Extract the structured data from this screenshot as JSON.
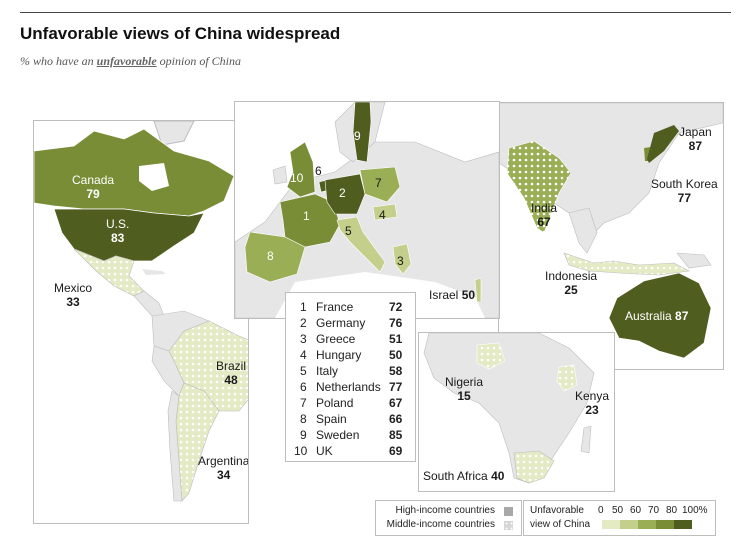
{
  "title": "Unfavorable views of China widespread",
  "subtitle_prefix": "% who have an ",
  "subtitle_emph": "unfavorable",
  "subtitle_suffix": " opinion of China",
  "americas": {
    "canada": {
      "name": "Canada",
      "value": "79"
    },
    "us": {
      "name": "U.S.",
      "value": "83"
    },
    "mexico": {
      "name": "Mexico",
      "value": "33"
    },
    "brazil": {
      "name": "Brazil",
      "value": "48"
    },
    "argentina": {
      "name": "Argentina",
      "value": "34"
    }
  },
  "europe_numbers": [
    "1",
    "2",
    "3",
    "4",
    "5",
    "6",
    "7",
    "8",
    "9",
    "10"
  ],
  "europe_list": [
    {
      "n": "1",
      "country": "France",
      "value": "72"
    },
    {
      "n": "2",
      "country": "Germany",
      "value": "76"
    },
    {
      "n": "3",
      "country": "Greece",
      "value": "51"
    },
    {
      "n": "4",
      "country": "Hungary",
      "value": "50"
    },
    {
      "n": "5",
      "country": "Italy",
      "value": "58"
    },
    {
      "n": "6",
      "country": "Netherlands",
      "value": "77"
    },
    {
      "n": "7",
      "country": "Poland",
      "value": "67"
    },
    {
      "n": "8",
      "country": "Spain",
      "value": "66"
    },
    {
      "n": "9",
      "country": "Sweden",
      "value": "85"
    },
    {
      "n": "10",
      "country": "UK",
      "value": "69"
    }
  ],
  "israel": {
    "name": "Israel",
    "value": "50"
  },
  "asia": {
    "japan": {
      "name": "Japan",
      "value": "87"
    },
    "south_korea": {
      "name": "South Korea",
      "value": "77"
    },
    "india": {
      "name": "India",
      "value": "67"
    },
    "indonesia": {
      "name": "Indonesia",
      "value": "25"
    },
    "australia": {
      "name": "Australia",
      "value": "87"
    }
  },
  "africa": {
    "nigeria": {
      "name": "Nigeria",
      "value": "15"
    },
    "kenya": {
      "name": "Kenya",
      "value": "23"
    },
    "south_africa": {
      "name": "South Africa",
      "value": "40"
    }
  },
  "legend": {
    "high_income": "High-income countries",
    "middle_income": "Middle-income countries",
    "scale_title_1": "Unfavorable",
    "scale_title_2": "view of China",
    "scale_ticks": [
      "0",
      "50",
      "60",
      "70",
      "80",
      "100%"
    ],
    "scale_colors": [
      "#e3eac4",
      "#c3cf8a",
      "#9aae55",
      "#788d36",
      "#4f5d1f"
    ]
  },
  "colors": {
    "c80": "#4f5d1f",
    "c70": "#788d36",
    "c60": "#9aae55",
    "c50": "#c3cf8a",
    "c0": "#e3eac4",
    "nodata": "#e6e6e6",
    "border": "#bdbdbd"
  }
}
